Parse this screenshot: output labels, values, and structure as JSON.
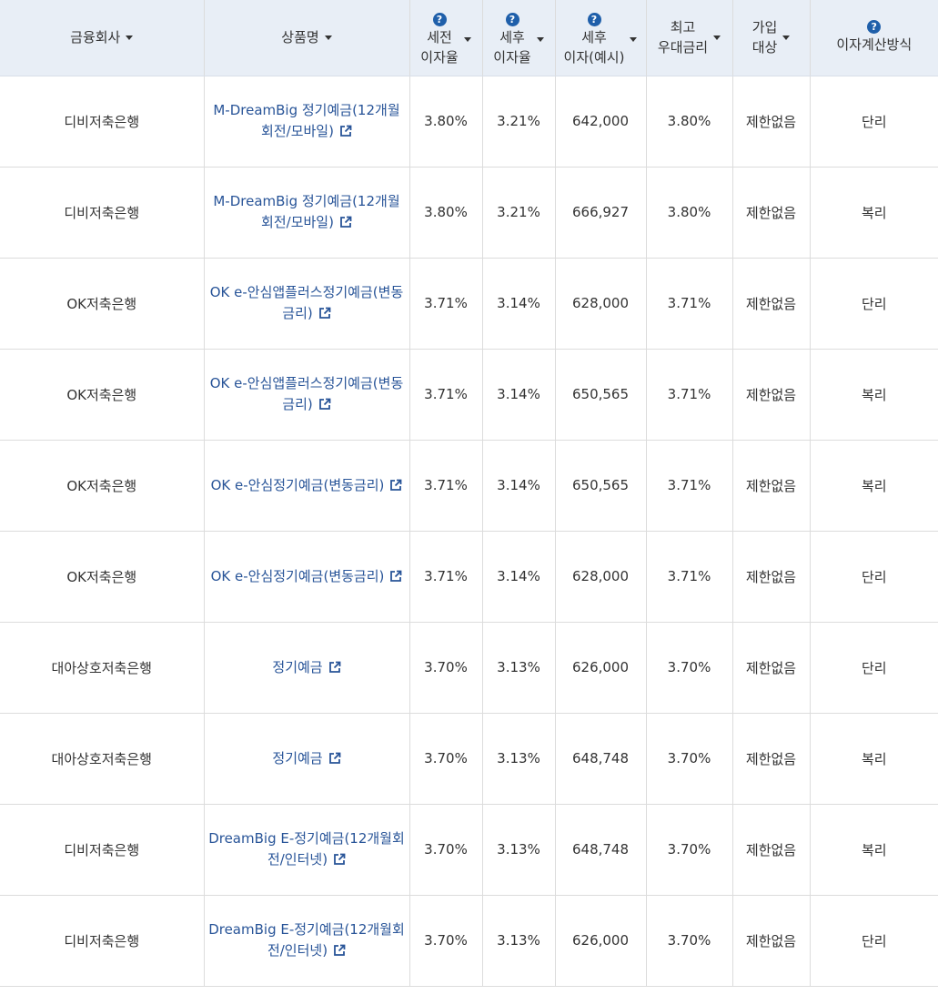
{
  "header": {
    "company": "금융회사",
    "product": "상품명",
    "pre_tax_rate": [
      "세전",
      "이자율"
    ],
    "post_tax_rate": [
      "세후",
      "이자율"
    ],
    "post_tax_interest": [
      "세후",
      "이자(예시)"
    ],
    "max_rate": [
      "최고",
      "우대금리"
    ],
    "eligibility": [
      "가입",
      "대상"
    ],
    "calc_method": "이자계산방식",
    "help_glyph": "?"
  },
  "rows": [
    {
      "company": "디비저축은행",
      "product": "M-DreamBig 정기예금(12개월회전/모바일)",
      "pre": "3.80%",
      "post": "3.21%",
      "interest": "642,000",
      "max": "3.80%",
      "elig": "제한없음",
      "calc": "단리"
    },
    {
      "company": "디비저축은행",
      "product": "M-DreamBig 정기예금(12개월회전/모바일)",
      "pre": "3.80%",
      "post": "3.21%",
      "interest": "666,927",
      "max": "3.80%",
      "elig": "제한없음",
      "calc": "복리"
    },
    {
      "company": "OK저축은행",
      "product": "OK e-안심앱플러스정기예금(변동금리)",
      "pre": "3.71%",
      "post": "3.14%",
      "interest": "628,000",
      "max": "3.71%",
      "elig": "제한없음",
      "calc": "단리"
    },
    {
      "company": "OK저축은행",
      "product": "OK e-안심앱플러스정기예금(변동금리)",
      "pre": "3.71%",
      "post": "3.14%",
      "interest": "650,565",
      "max": "3.71%",
      "elig": "제한없음",
      "calc": "복리"
    },
    {
      "company": "OK저축은행",
      "product": "OK e-안심정기예금(변동금리)",
      "pre": "3.71%",
      "post": "3.14%",
      "interest": "650,565",
      "max": "3.71%",
      "elig": "제한없음",
      "calc": "복리"
    },
    {
      "company": "OK저축은행",
      "product": "OK e-안심정기예금(변동금리)",
      "pre": "3.71%",
      "post": "3.14%",
      "interest": "628,000",
      "max": "3.71%",
      "elig": "제한없음",
      "calc": "단리"
    },
    {
      "company": "대아상호저축은행",
      "product": "정기예금",
      "pre": "3.70%",
      "post": "3.13%",
      "interest": "626,000",
      "max": "3.70%",
      "elig": "제한없음",
      "calc": "단리"
    },
    {
      "company": "대아상호저축은행",
      "product": "정기예금",
      "pre": "3.70%",
      "post": "3.13%",
      "interest": "648,748",
      "max": "3.70%",
      "elig": "제한없음",
      "calc": "복리"
    },
    {
      "company": "디비저축은행",
      "product": "DreamBig E-정기예금(12개월회전/인터넷)",
      "pre": "3.70%",
      "post": "3.13%",
      "interest": "648,748",
      "max": "3.70%",
      "elig": "제한없음",
      "calc": "복리"
    },
    {
      "company": "디비저축은행",
      "product": "DreamBig E-정기예금(12개월회전/인터넷)",
      "pre": "3.70%",
      "post": "3.13%",
      "interest": "626,000",
      "max": "3.70%",
      "elig": "제한없음",
      "calc": "단리"
    }
  ],
  "colors": {
    "header_bg": "#e8eef6",
    "link": "#285498",
    "help_icon": "#1f5faa",
    "border": "#dcdcdc"
  },
  "icons": {
    "sort": "caret-down-icon",
    "help": "question-circle-icon",
    "external": "external-link-icon"
  }
}
